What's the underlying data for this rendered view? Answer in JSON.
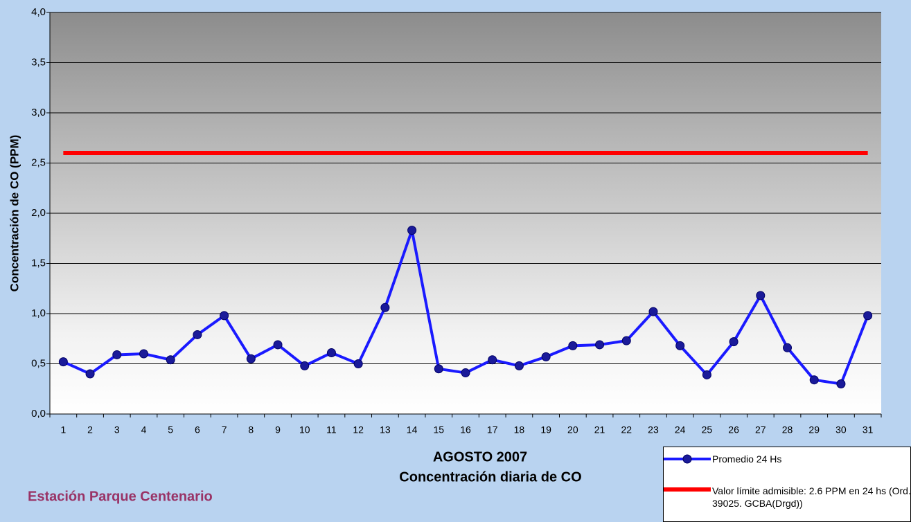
{
  "chart_data": {
    "type": "line",
    "title": "AGOSTO 2007",
    "subtitle": "Concentración diaria de CO",
    "annotation": "Estación Parque Centenario",
    "y_label": "Concentración de CO (PPM)",
    "categories": [
      "1",
      "2",
      "3",
      "4",
      "5",
      "6",
      "7",
      "8",
      "9",
      "10",
      "11",
      "12",
      "13",
      "14",
      "15",
      "16",
      "17",
      "18",
      "19",
      "20",
      "21",
      "22",
      "23",
      "24",
      "25",
      "26",
      "27",
      "28",
      "29",
      "30",
      "31"
    ],
    "series": [
      {
        "name": "Promedio 24 Hs",
        "color": "#1a1aff",
        "values": [
          0.52,
          0.4,
          0.59,
          0.6,
          0.54,
          0.79,
          0.98,
          0.55,
          0.69,
          0.48,
          0.61,
          0.5,
          1.06,
          1.83,
          0.45,
          0.41,
          0.54,
          0.48,
          0.57,
          0.68,
          0.69,
          0.73,
          1.02,
          0.68,
          0.39,
          0.72,
          1.18,
          0.66,
          0.34,
          0.3,
          0.98
        ]
      },
      {
        "name": "Valor límite admisible: 2.6 PPM en 24 hs (Ord. 39025. GCBA(Drgd))",
        "color": "#ff0000",
        "values": [
          2.6,
          2.6,
          2.6,
          2.6,
          2.6,
          2.6,
          2.6,
          2.6,
          2.6,
          2.6,
          2.6,
          2.6,
          2.6,
          2.6,
          2.6,
          2.6,
          2.6,
          2.6,
          2.6,
          2.6,
          2.6,
          2.6,
          2.6,
          2.6,
          2.6,
          2.6,
          2.6,
          2.6,
          2.6,
          2.6,
          2.6
        ]
      }
    ],
    "ylim": [
      0,
      4
    ],
    "yticks": [
      {
        "value": 0,
        "label": "0,0"
      },
      {
        "value": 0.5,
        "label": "0,5"
      },
      {
        "value": 1,
        "label": "1,0"
      },
      {
        "value": 1.5,
        "label": "1,5"
      },
      {
        "value": 2,
        "label": "2,0"
      },
      {
        "value": 2.5,
        "label": "2,5"
      },
      {
        "value": 3,
        "label": "3,0"
      },
      {
        "value": 3.5,
        "label": "3,5"
      },
      {
        "value": 4,
        "label": "4,0"
      }
    ],
    "grid": true
  }
}
